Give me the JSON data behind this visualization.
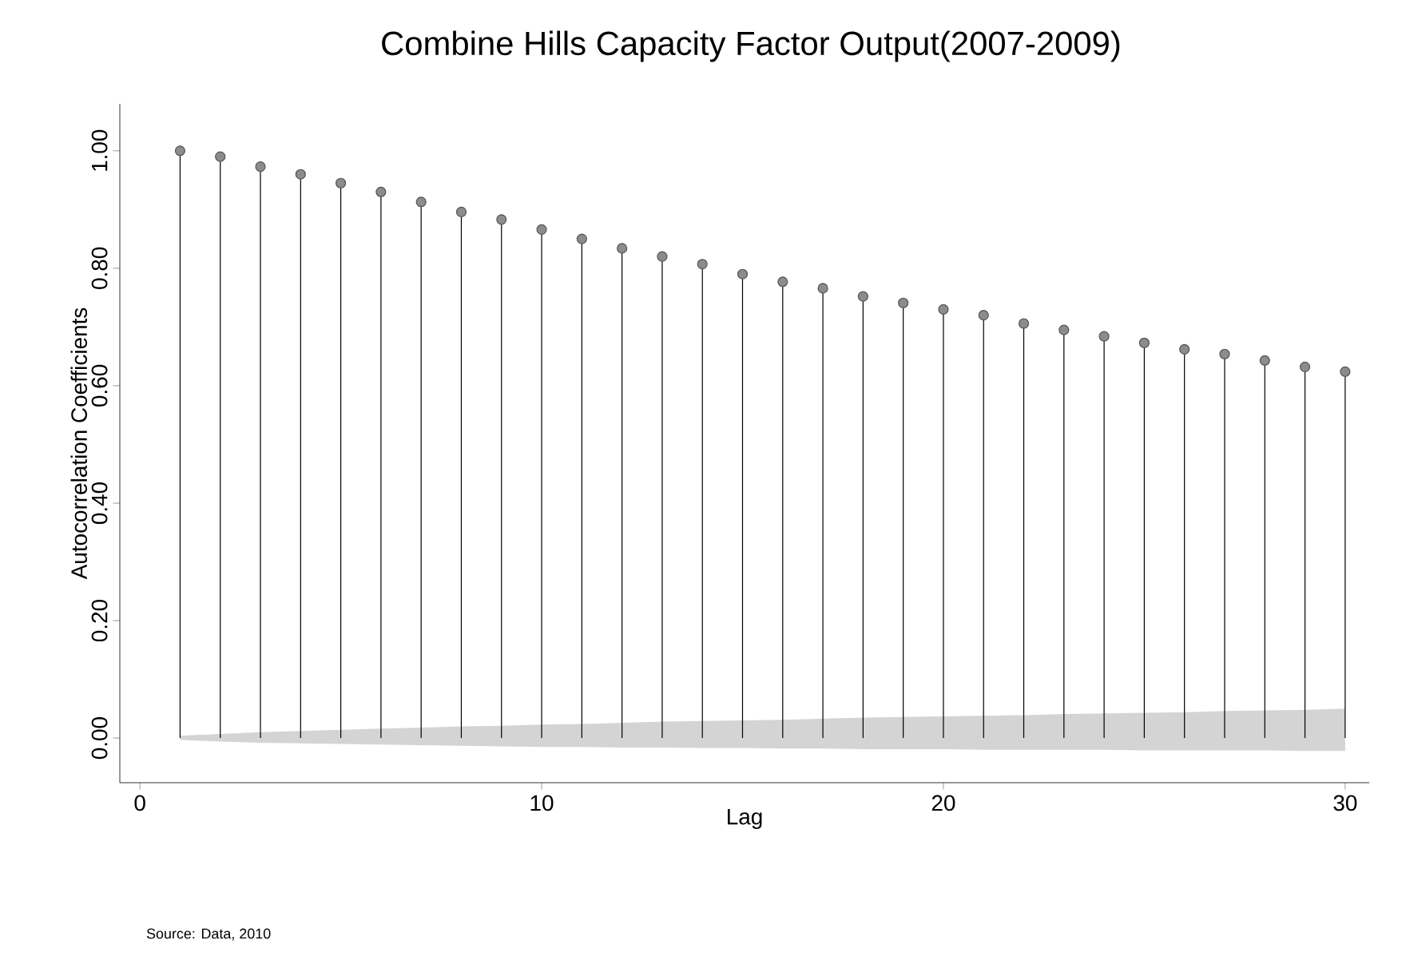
{
  "chart_data": {
    "type": "lollipop",
    "title": "Combine Hills Capacity Factor Output(2007-2009)",
    "xlabel": "Lag",
    "ylabel": "Autocorrelation Coefficients",
    "x": [
      1,
      2,
      3,
      4,
      5,
      6,
      7,
      8,
      9,
      10,
      11,
      12,
      13,
      14,
      15,
      16,
      17,
      18,
      19,
      20,
      21,
      22,
      23,
      24,
      25,
      26,
      27,
      28,
      29,
      30
    ],
    "series": [
      {
        "color": "#8c8c8c",
        "marker": "circle",
        "values": [
          1.0,
          0.99,
          0.973,
          0.96,
          0.945,
          0.93,
          0.913,
          0.896,
          0.883,
          0.866,
          0.85,
          0.834,
          0.82,
          0.807,
          0.79,
          0.777,
          0.766,
          0.752,
          0.741,
          0.73,
          0.72,
          0.706,
          0.695,
          0.684,
          0.673,
          0.662,
          0.654,
          0.643,
          0.632,
          0.624
        ]
      },
      {
        "type": "area",
        "color": "#d4d4d4",
        "values": [
          0.004,
          0.007,
          0.01,
          0.012,
          0.014,
          0.016,
          0.018,
          0.02,
          0.021,
          0.023,
          0.024,
          0.026,
          0.028,
          0.029,
          0.03,
          0.031,
          0.033,
          0.035,
          0.036,
          0.037,
          0.038,
          0.039,
          0.041,
          0.042,
          0.043,
          0.044,
          0.046,
          0.047,
          0.048,
          0.05
        ]
      },
      {
        "type": "area",
        "color": "#d4d4d4",
        "values": [
          -0.003,
          -0.006,
          -0.008,
          -0.009,
          -0.01,
          -0.011,
          -0.012,
          -0.013,
          -0.014,
          -0.015,
          -0.015,
          -0.016,
          -0.016,
          -0.017,
          -0.017,
          -0.018,
          -0.018,
          -0.019,
          -0.019,
          -0.019,
          -0.02,
          -0.02,
          -0.02,
          -0.02,
          -0.021,
          -0.021,
          -0.021,
          -0.021,
          -0.022,
          -0.022
        ]
      }
    ],
    "xlim": [
      -0.5,
      30.6
    ],
    "ylim": [
      -0.076,
      1.08
    ],
    "xticks": [
      0,
      10,
      20,
      30
    ],
    "yticks": [
      {
        "value": 0,
        "label": "0.00"
      },
      {
        "value": 0.2,
        "label": "0.20"
      },
      {
        "value": 0.4,
        "label": "0.40"
      },
      {
        "value": 0.6,
        "label": "0.60"
      },
      {
        "value": 0.8,
        "label": "0.80"
      },
      {
        "value": 1,
        "label": "1.00"
      }
    ],
    "annotations": [
      "Source:  Data, 2010"
    ]
  }
}
